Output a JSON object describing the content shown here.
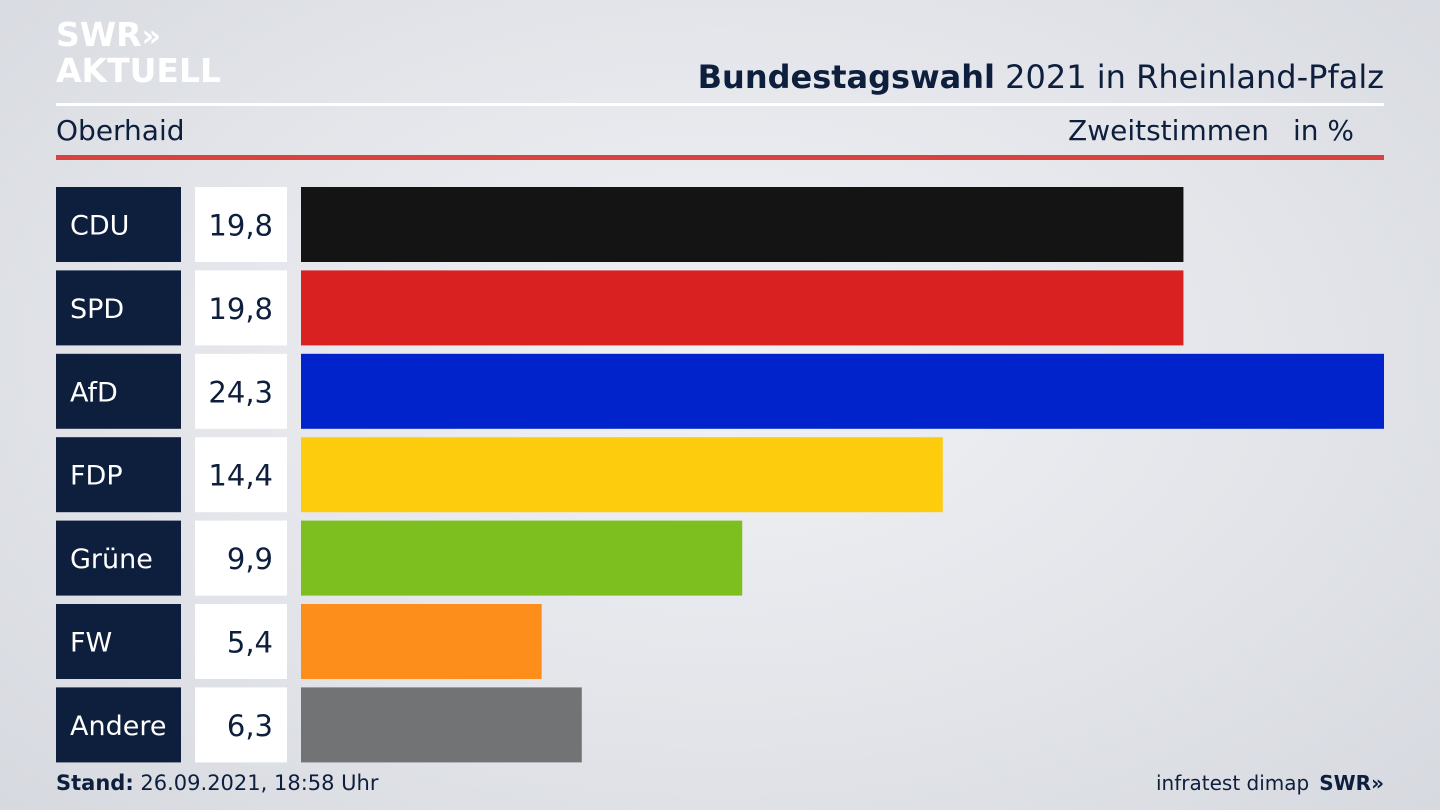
{
  "brand": {
    "line1": "SWR",
    "arrows": "»",
    "line2": "AKTUELL"
  },
  "header": {
    "title_bold": "Bundestagswahl",
    "title_rest": " 2021 in Rheinland-Pfalz",
    "location": "Oberhaid",
    "vote_type": "Zweitstimmen",
    "unit": "in %"
  },
  "footer": {
    "stand_label": "Stand:",
    "stand_value": " 26.09.2021, 18:58 Uhr",
    "source": "infratest dimap",
    "brand": "SWR»"
  },
  "chart_data": {
    "type": "bar",
    "orientation": "horizontal",
    "categories": [
      "CDU",
      "SPD",
      "AfD",
      "FDP",
      "Grüne",
      "FW",
      "Andere"
    ],
    "values": [
      19.8,
      19.8,
      24.3,
      14.4,
      9.9,
      5.4,
      6.3
    ],
    "value_labels": [
      "19,8",
      "19,8",
      "24,3",
      "14,4",
      "9,9",
      "5,4",
      "6,3"
    ],
    "colors": [
      "#141414",
      "#d92121",
      "#0023cc",
      "#fdcc0c",
      "#7cbf1f",
      "#fd8e1c",
      "#727375"
    ],
    "xlim": [
      0,
      24.3
    ]
  }
}
